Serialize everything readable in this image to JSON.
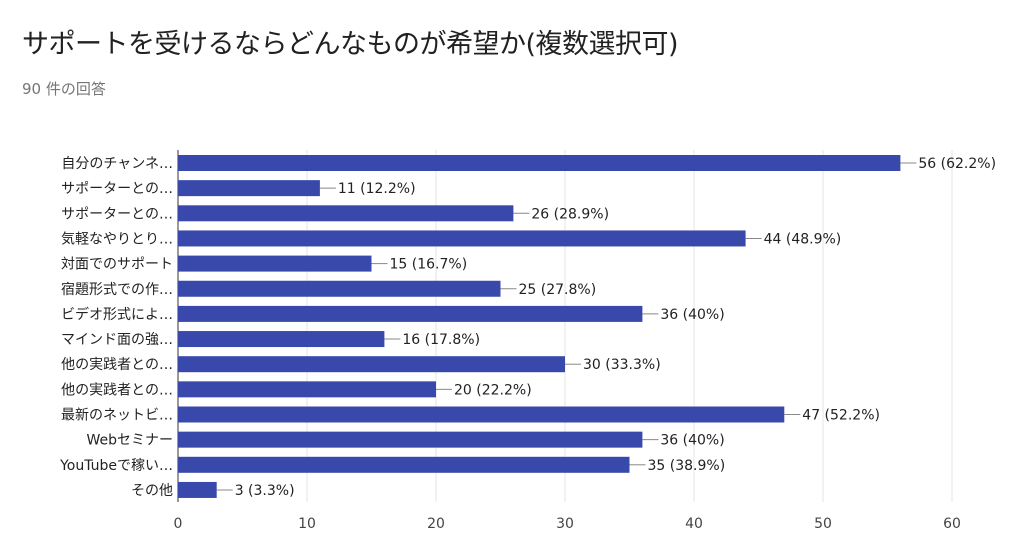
{
  "header": {
    "title": "サポートを受けるならどんなものが希望か(複数選択可)",
    "response_count": "90 件の回答"
  },
  "colors": {
    "bar": "#3949ab",
    "grid": "#e6e6e6",
    "axis": "#333333"
  },
  "chart_data": {
    "type": "bar",
    "orientation": "horizontal",
    "title": "サポートを受けるならどんなものが希望か(複数選択可)",
    "categories": [
      "自分のチャンネ…",
      "サポーターとの…",
      "サポーターとの…",
      "気軽なやりとり…",
      "対面でのサポート",
      "宿題形式での作…",
      "ビデオ形式によ…",
      "マインド面の強…",
      "他の実践者との…",
      "他の実践者との…",
      "最新のネットビ…",
      "Webセミナー",
      "YouTubeで稼い…",
      "その他"
    ],
    "values": [
      56,
      11,
      26,
      44,
      15,
      25,
      36,
      16,
      30,
      20,
      47,
      36,
      35,
      3
    ],
    "data_labels": [
      "56 (62.2%)",
      "11 (12.2%)",
      "26 (28.9%)",
      "44 (48.9%)",
      "15 (16.7%)",
      "25 (27.8%)",
      "36 (40%)",
      "16 (17.8%)",
      "30 (33.3%)",
      "20 (22.2%)",
      "47 (52.2%)",
      "36 (40%)",
      "35 (38.9%)",
      "3 (3.3%)"
    ],
    "xlim": [
      0,
      60
    ],
    "xticks": [
      "0",
      "10",
      "20",
      "30",
      "40",
      "50",
      "60"
    ],
    "grid": true
  }
}
